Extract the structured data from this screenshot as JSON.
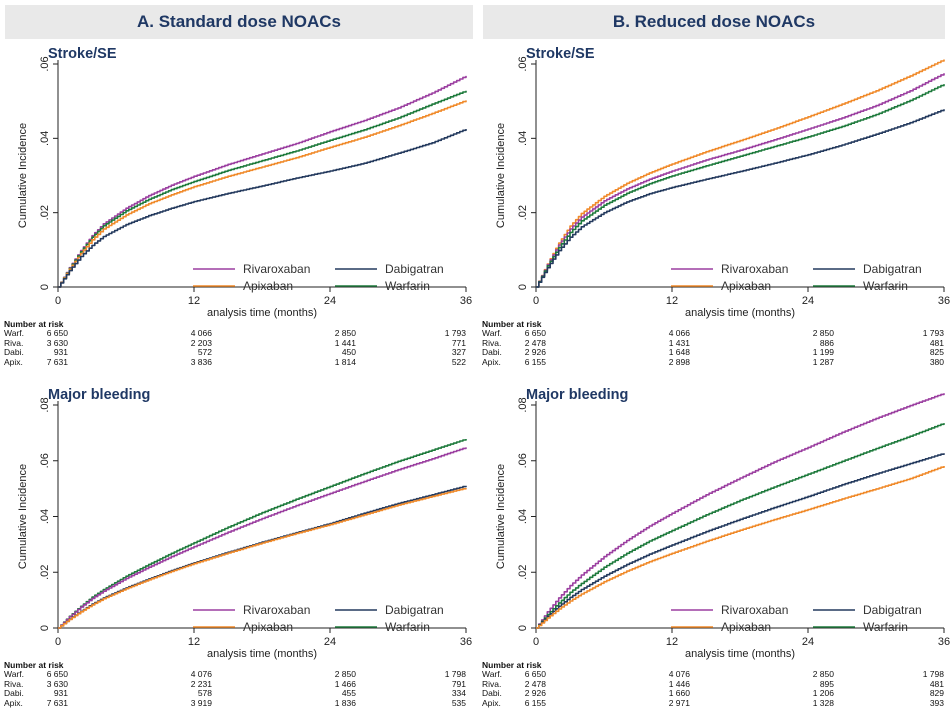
{
  "headers": {
    "a": "A. Standard dose NOACs",
    "b": "B. Reduced dose NOACs"
  },
  "series_colors": {
    "Rivaroxaban": "#9b3fa0",
    "Dabigatran": "#243a5e",
    "Apixaban": "#f08a2a",
    "Warfarin": "#1e7a3c"
  },
  "risk_table_title": "Number at risk",
  "chart_data": [
    {
      "id": "a1",
      "type": "line",
      "title": "Stroke/SE",
      "xlabel": "analysis time (months)",
      "ylabel": "Cumulative Incidence",
      "xlim": [
        0,
        36
      ],
      "ylim": [
        0,
        0.06
      ],
      "xticks": [
        0,
        12,
        24,
        36
      ],
      "yticks": [
        0,
        0.02,
        0.04,
        0.06
      ],
      "ytick_labels": [
        "0",
        ".02",
        ".04",
        ".06"
      ],
      "legend_placement": "bottom-right",
      "legend_order": [
        "Rivaroxaban",
        "Dabigatran",
        "Apixaban",
        "Warfarin"
      ],
      "x": [
        0,
        1,
        2,
        3,
        4,
        6,
        8,
        10,
        12,
        15,
        18,
        21,
        24,
        27,
        30,
        33,
        36
      ],
      "series": [
        {
          "name": "Rivaroxaban",
          "values": [
            0,
            0.0052,
            0.0098,
            0.0138,
            0.017,
            0.0212,
            0.0246,
            0.0274,
            0.0298,
            0.033,
            0.0358,
            0.0386,
            0.0418,
            0.0448,
            0.0482,
            0.0522,
            0.0568
          ]
        },
        {
          "name": "Warfarin",
          "values": [
            0,
            0.005,
            0.0095,
            0.0134,
            0.0165,
            0.0205,
            0.0236,
            0.0262,
            0.0284,
            0.0314,
            0.034,
            0.0366,
            0.0395,
            0.0423,
            0.0455,
            0.0492,
            0.0528
          ]
        },
        {
          "name": "Apixaban",
          "values": [
            0,
            0.0048,
            0.009,
            0.0127,
            0.0156,
            0.0194,
            0.0224,
            0.0248,
            0.027,
            0.0298,
            0.0323,
            0.0348,
            0.0376,
            0.0403,
            0.0434,
            0.0467,
            0.0502
          ]
        },
        {
          "name": "Dabigatran",
          "values": [
            0,
            0.0044,
            0.0082,
            0.0112,
            0.0136,
            0.0168,
            0.0192,
            0.0212,
            0.023,
            0.0252,
            0.0272,
            0.0293,
            0.0312,
            0.0333,
            0.036,
            0.0388,
            0.0425
          ]
        }
      ],
      "risk_table": {
        "rows": [
          {
            "label": "Warf.",
            "values": [
              "6 650",
              "4 066",
              "2 850",
              "1 793"
            ]
          },
          {
            "label": "Riva.",
            "values": [
              "3 630",
              "2 203",
              "1 441",
              "771"
            ]
          },
          {
            "label": "Dabi.",
            "values": [
              "931",
              "572",
              "450",
              "327"
            ]
          },
          {
            "label": "Apix.",
            "values": [
              "7 631",
              "3 836",
              "1 814",
              "522"
            ]
          }
        ]
      }
    },
    {
      "id": "b1",
      "type": "line",
      "title": "Stroke/SE",
      "xlabel": "analysis time (months)",
      "ylabel": "Cumulative Incidence",
      "xlim": [
        0,
        36
      ],
      "ylim": [
        0,
        0.06
      ],
      "xticks": [
        0,
        12,
        24,
        36
      ],
      "yticks": [
        0,
        0.02,
        0.04,
        0.06
      ],
      "ytick_labels": [
        "0",
        ".02",
        ".04",
        ".06"
      ],
      "legend_placement": "bottom-right",
      "legend_order": [
        "Rivaroxaban",
        "Dabigatran",
        "Apixaban",
        "Warfarin"
      ],
      "x": [
        0,
        1,
        2,
        3,
        4,
        6,
        8,
        10,
        12,
        15,
        18,
        21,
        24,
        27,
        30,
        33,
        36
      ],
      "series": [
        {
          "name": "Apixaban",
          "values": [
            0,
            0.0062,
            0.0118,
            0.0164,
            0.0198,
            0.0244,
            0.0279,
            0.0307,
            0.0331,
            0.0364,
            0.0394,
            0.0425,
            0.0458,
            0.0492,
            0.0528,
            0.0568,
            0.0612
          ]
        },
        {
          "name": "Rivaroxaban",
          "values": [
            0,
            0.006,
            0.0113,
            0.0156,
            0.0188,
            0.0232,
            0.0264,
            0.029,
            0.0312,
            0.0342,
            0.0368,
            0.0396,
            0.0425,
            0.0455,
            0.0488,
            0.0528,
            0.0575
          ]
        },
        {
          "name": "Warfarin",
          "values": [
            0,
            0.0057,
            0.0106,
            0.0147,
            0.0178,
            0.022,
            0.0252,
            0.0278,
            0.0299,
            0.0326,
            0.0352,
            0.0378,
            0.0404,
            0.0432,
            0.0464,
            0.0502,
            0.0546
          ]
        },
        {
          "name": "Dabigatran",
          "values": [
            0,
            0.0052,
            0.0098,
            0.0134,
            0.0162,
            0.02,
            0.0229,
            0.0251,
            0.0268,
            0.029,
            0.0311,
            0.0333,
            0.0356,
            0.0382,
            0.0411,
            0.0442,
            0.0478
          ]
        }
      ],
      "risk_table": {
        "rows": [
          {
            "label": "Warf.",
            "values": [
              "6 650",
              "4 066",
              "2 850",
              "1 793"
            ]
          },
          {
            "label": "Riva.",
            "values": [
              "2 478",
              "1 431",
              "886",
              "481"
            ]
          },
          {
            "label": "Dabi.",
            "values": [
              "2 926",
              "1 648",
              "1 199",
              "825"
            ]
          },
          {
            "label": "Apix.",
            "values": [
              "6 155",
              "2 898",
              "1 287",
              "380"
            ]
          }
        ]
      }
    },
    {
      "id": "a2",
      "type": "line",
      "title": "Major bleeding",
      "xlabel": "analysis time (months)",
      "ylabel": "Cumulative Incidence",
      "xlim": [
        0,
        36
      ],
      "ylim": [
        0,
        0.08
      ],
      "xticks": [
        0,
        12,
        24,
        36
      ],
      "yticks": [
        0,
        0.02,
        0.04,
        0.06,
        0.08
      ],
      "ytick_labels": [
        "0",
        ".02",
        ".04",
        ".06",
        ".08"
      ],
      "legend_placement": "bottom-right",
      "legend_order": [
        "Rivaroxaban",
        "Dabigatran",
        "Apixaban",
        "Warfarin"
      ],
      "x": [
        0,
        1,
        2,
        3,
        4,
        6,
        8,
        10,
        12,
        15,
        18,
        21,
        24,
        27,
        30,
        33,
        36
      ],
      "series": [
        {
          "name": "Warfarin",
          "values": [
            0,
            0.0042,
            0.0078,
            0.0111,
            0.0138,
            0.0186,
            0.0228,
            0.0268,
            0.0306,
            0.0362,
            0.0414,
            0.0462,
            0.0508,
            0.0554,
            0.0598,
            0.0638,
            0.0678
          ]
        },
        {
          "name": "Rivaroxaban",
          "values": [
            0,
            0.004,
            0.0075,
            0.0106,
            0.0132,
            0.0178,
            0.0218,
            0.0256,
            0.0292,
            0.0344,
            0.0393,
            0.0439,
            0.0483,
            0.0526,
            0.0568,
            0.0607,
            0.0648
          ]
        },
        {
          "name": "Dabigatran",
          "values": [
            0,
            0.0032,
            0.006,
            0.0086,
            0.0108,
            0.0144,
            0.0176,
            0.0206,
            0.0234,
            0.0272,
            0.0308,
            0.0342,
            0.0375,
            0.0412,
            0.0447,
            0.0478,
            0.051
          ]
        },
        {
          "name": "Apixaban",
          "values": [
            0,
            0.0031,
            0.0058,
            0.0083,
            0.0105,
            0.0141,
            0.0173,
            0.0203,
            0.0231,
            0.0269,
            0.0305,
            0.0339,
            0.0371,
            0.0406,
            0.0441,
            0.0472,
            0.0502
          ]
        }
      ],
      "risk_table": {
        "rows": [
          {
            "label": "Warf.",
            "values": [
              "6 650",
              "4 076",
              "2 850",
              "1 798"
            ]
          },
          {
            "label": "Riva.",
            "values": [
              "3 630",
              "2 231",
              "1 466",
              "791"
            ]
          },
          {
            "label": "Dabi.",
            "values": [
              "931",
              "578",
              "455",
              "334"
            ]
          },
          {
            "label": "Apix.",
            "values": [
              "7 631",
              "3 919",
              "1 836",
              "535"
            ]
          }
        ]
      }
    },
    {
      "id": "b2",
      "type": "line",
      "title": "Major bleeding",
      "xlabel": "analysis time (months)",
      "ylabel": "Cumulative Incidence",
      "xlim": [
        0,
        36
      ],
      "ylim": [
        0,
        0.08
      ],
      "xticks": [
        0,
        12,
        24,
        36
      ],
      "yticks": [
        0,
        0.02,
        0.04,
        0.06,
        0.08
      ],
      "ytick_labels": [
        "0",
        ".02",
        ".04",
        ".06",
        ".08"
      ],
      "legend_placement": "bottom-right",
      "legend_order": [
        "Rivaroxaban",
        "Dabigatran",
        "Apixaban",
        "Warfarin"
      ],
      "x": [
        0,
        1,
        2,
        3,
        4,
        6,
        8,
        10,
        12,
        15,
        18,
        21,
        24,
        27,
        30,
        33,
        36
      ],
      "series": [
        {
          "name": "Rivaroxaban",
          "values": [
            0,
            0.0058,
            0.0108,
            0.0152,
            0.019,
            0.0256,
            0.0314,
            0.0366,
            0.0412,
            0.0478,
            0.0538,
            0.0596,
            0.0648,
            0.0702,
            0.0752,
            0.0798,
            0.0842
          ]
        },
        {
          "name": "Warfarin",
          "values": [
            0,
            0.0048,
            0.009,
            0.0128,
            0.016,
            0.0218,
            0.0268,
            0.0312,
            0.035,
            0.0406,
            0.0458,
            0.0506,
            0.0552,
            0.0598,
            0.0644,
            0.0688,
            0.0735
          ]
        },
        {
          "name": "Dabigatran",
          "values": [
            0,
            0.0042,
            0.0078,
            0.011,
            0.0138,
            0.0186,
            0.0228,
            0.0265,
            0.0298,
            0.0346,
            0.039,
            0.0432,
            0.0472,
            0.0514,
            0.0553,
            0.059,
            0.0627
          ]
        },
        {
          "name": "Apixaban",
          "values": [
            0,
            0.0036,
            0.0068,
            0.0097,
            0.0122,
            0.0166,
            0.0204,
            0.0238,
            0.0268,
            0.0311,
            0.0351,
            0.0389,
            0.0425,
            0.0463,
            0.0499,
            0.0536,
            0.0581
          ]
        }
      ],
      "risk_table": {
        "rows": [
          {
            "label": "Warf.",
            "values": [
              "6 650",
              "4 076",
              "2 850",
              "1 798"
            ]
          },
          {
            "label": "Riva.",
            "values": [
              "2 478",
              "1 446",
              "895",
              "481"
            ]
          },
          {
            "label": "Dabi.",
            "values": [
              "2 926",
              "1 660",
              "1 206",
              "829"
            ]
          },
          {
            "label": "Apix.",
            "values": [
              "6 155",
              "2 971",
              "1 328",
              "393"
            ]
          }
        ]
      }
    }
  ]
}
